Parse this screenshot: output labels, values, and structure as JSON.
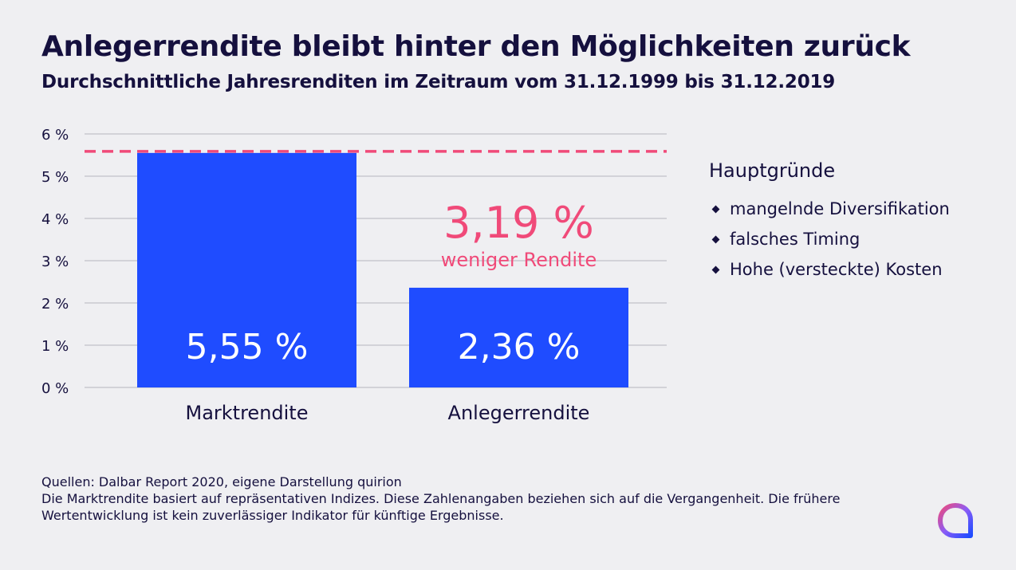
{
  "header": {
    "title": "Anlegerrendite bleibt hinter den Möglichkeiten zurück",
    "subtitle": "Durchschnittliche Jahresrenditen im Zeitraum vom 31.12.1999 bis 31.12.2019"
  },
  "chart_data": {
    "type": "bar",
    "categories": [
      "Marktrendite",
      "Anlegerrendite"
    ],
    "values": [
      5.55,
      2.36
    ],
    "value_labels": [
      "5,55 %",
      "2,36 %"
    ],
    "yticks": [
      0,
      1,
      2,
      3,
      4,
      5,
      6
    ],
    "ytick_labels": [
      "0 %",
      "1 %",
      "2 %",
      "3 %",
      "4 %",
      "5 %",
      "6 %"
    ],
    "ylim": [
      0,
      6
    ],
    "grid": true,
    "reference_line": {
      "value": 5.55,
      "style": "dashed"
    },
    "annotation": {
      "value_text": "3,19 %",
      "text": "weniger Rendite"
    },
    "colors": {
      "bar": "#1f4cff",
      "reference": "#f04a79",
      "annotation": "#f04a79",
      "grid": "#c9c9d0"
    }
  },
  "reasons": {
    "title": "Hauptgründe",
    "items": [
      "mangelnde Diversifikation",
      "falsches Timing",
      "Hohe (versteckte) Kosten"
    ]
  },
  "footnote": {
    "source": "Quellen: Dalbar Report 2020, eigene Darstellung quirion",
    "disclaimer": "Die Marktrendite basiert auf repräsentativen Indizes. Diese Zahlenangaben beziehen sich auf die Vergangenheit. Die frühere Wertentwicklung ist kein zuverlässiger Indikator für künftige Ergebnisse."
  },
  "logo": {
    "icon": "quirion-logo-icon",
    "colors": [
      "#1f4cff",
      "#f04a79",
      "#8b5cf6"
    ]
  }
}
